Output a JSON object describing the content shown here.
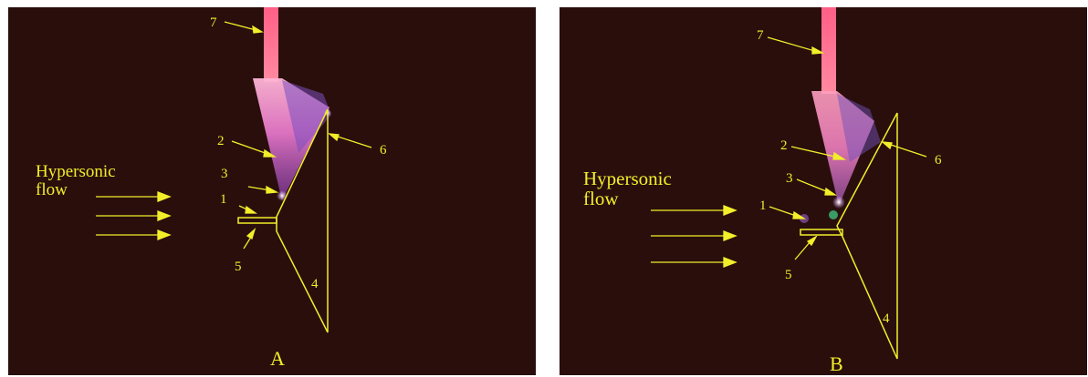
{
  "colors": {
    "background": "#2a0e0c",
    "annotation": "#f2ef2a",
    "plasma_jet": "#ff6f8a",
    "plasma_glow": "#e89be0",
    "discharge_violet": "#a070d8"
  },
  "panels": [
    {
      "caption": "A",
      "flow_label_line1": "Hypersonic",
      "flow_label_line2": "flow",
      "markers": [
        "1",
        "2",
        "3",
        "4",
        "5",
        "6",
        "7"
      ]
    },
    {
      "caption": "B",
      "flow_label_line1": "Hypersonic",
      "flow_label_line2": "flow",
      "markers": [
        "1",
        "2",
        "3",
        "4",
        "5",
        "6",
        "7"
      ]
    }
  ]
}
